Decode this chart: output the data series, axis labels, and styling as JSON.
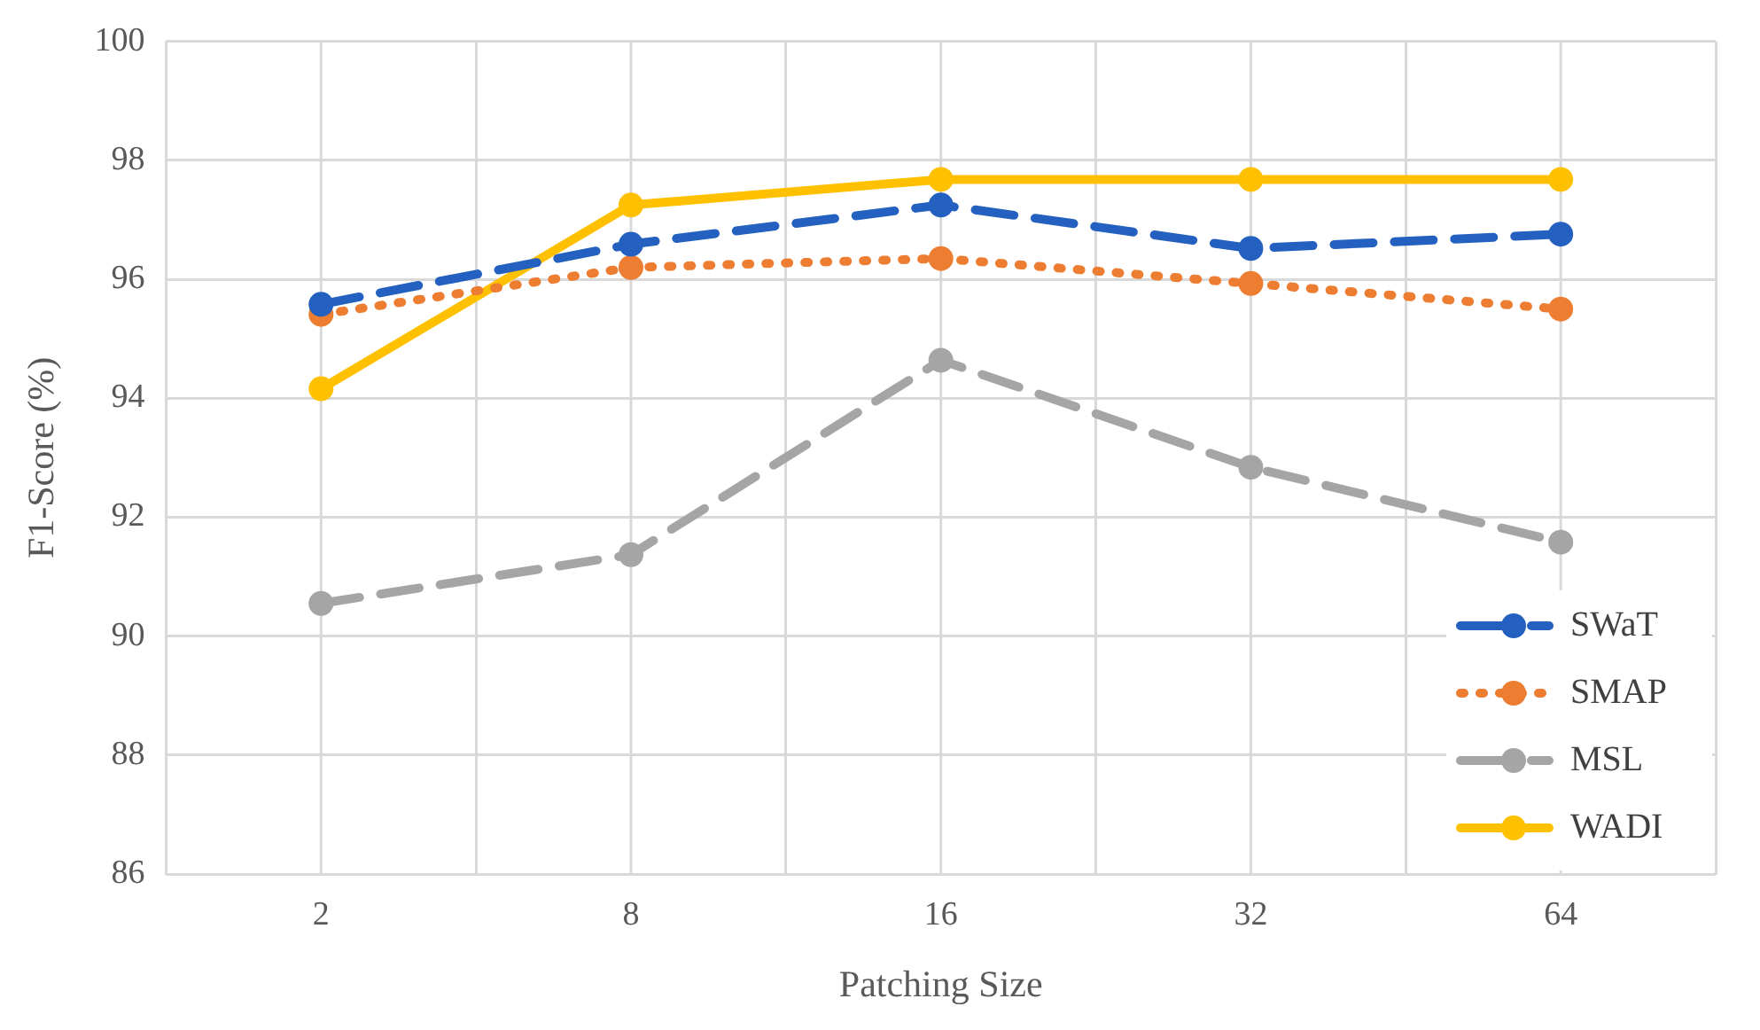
{
  "chart_data": {
    "type": "line",
    "xlabel": "Patching Size",
    "ylabel": "F1-Score (%)",
    "categories": [
      "2",
      "8",
      "16",
      "32",
      "64"
    ],
    "ylim": [
      86,
      100
    ],
    "yticks": [
      86,
      88,
      90,
      92,
      94,
      96,
      98,
      100
    ],
    "grid": true,
    "legend": "bottom right",
    "marker": "circle",
    "series": [
      {
        "name": "SWaT",
        "color": "#2360c0",
        "line_style": "dashed",
        "values": [
          95.58,
          96.59,
          97.25,
          96.52,
          96.76
        ]
      },
      {
        "name": "SMAP",
        "color": "#ed7d31",
        "line_style": "dotted",
        "values": [
          95.41,
          96.2,
          96.35,
          95.93,
          95.5
        ]
      },
      {
        "name": "MSL",
        "color": "#a5a5a5",
        "line_style": "dashed",
        "values": [
          90.55,
          91.37,
          94.64,
          92.84,
          91.58
        ]
      },
      {
        "name": "WADI",
        "color": "#ffc000",
        "line_style": "solid",
        "values": [
          94.16,
          97.25,
          97.68,
          97.68,
          97.68
        ]
      }
    ]
  }
}
